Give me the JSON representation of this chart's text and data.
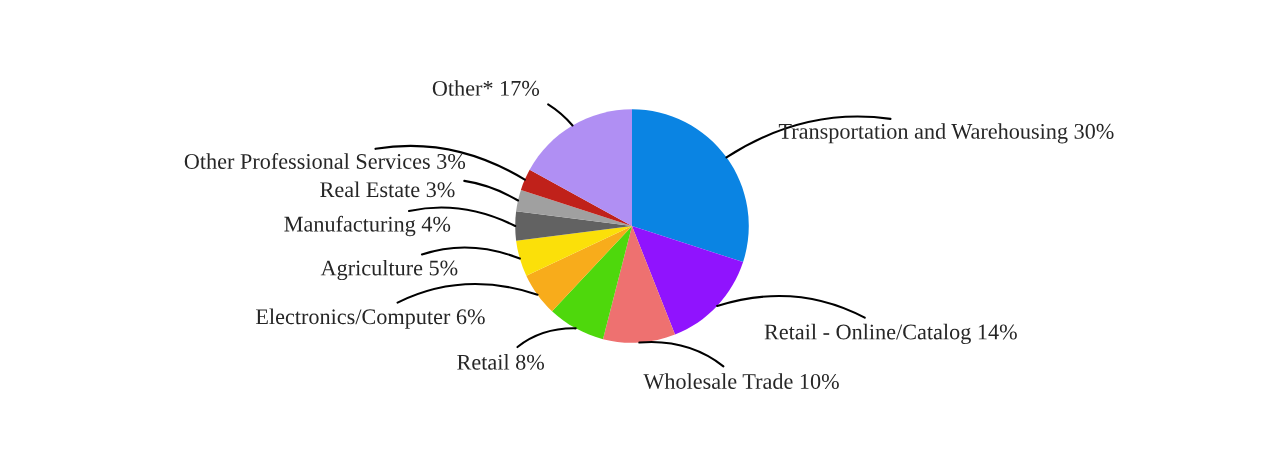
{
  "chart_data": {
    "type": "pie",
    "categories": [
      "Transportation and Warehousing",
      "Retail - Online/Catalog",
      "Wholesale Trade",
      "Retail",
      "Electronics/Computer",
      "Agriculture",
      "Manufacturing",
      "Real Estate",
      "Other Professional Services",
      "Other*"
    ],
    "values": [
      30,
      14,
      10,
      8,
      6,
      5,
      4,
      3,
      3,
      17
    ],
    "value_labels": [
      "30%",
      "14%",
      "10%",
      "8%",
      "6%",
      "5%",
      "4%",
      "3%",
      "3%",
      "17%"
    ],
    "colors": [
      "#0a84e3",
      "#9013fe",
      "#ee7170",
      "#4ed80c",
      "#f8ac1b",
      "#fbe009",
      "#626262",
      "#a0a0a0",
      "#c0211a",
      "#b08ff3"
    ],
    "legend": false
  }
}
